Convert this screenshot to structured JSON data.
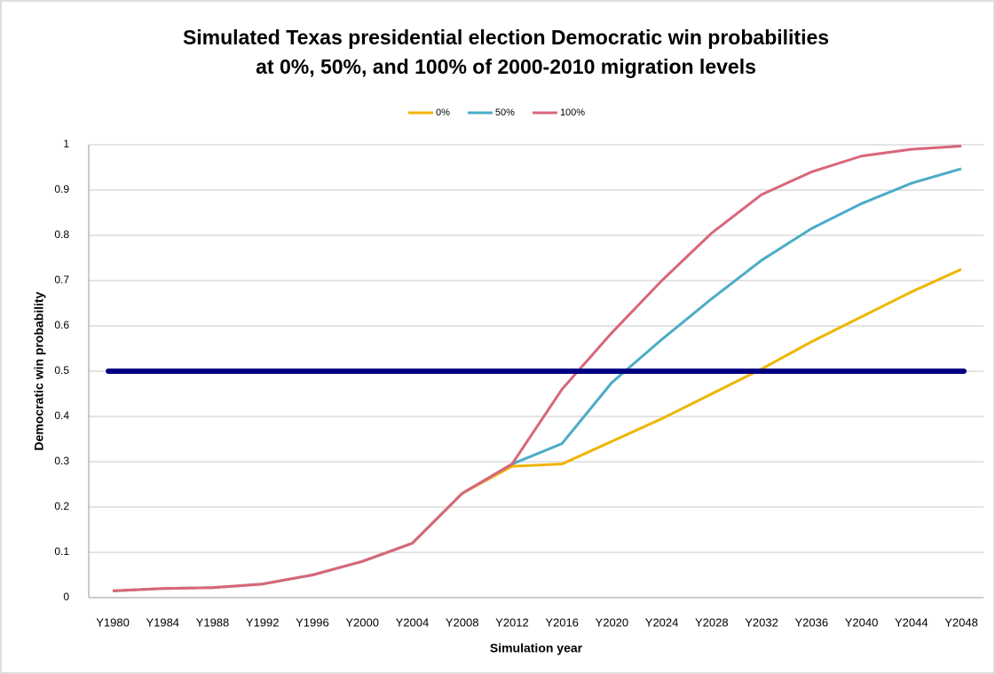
{
  "chart_data": {
    "type": "line",
    "title": [
      "Simulated Texas presidential election Democratic win probabilities",
      "at 0%, 50%, and 100% of 2000-2010 migration levels"
    ],
    "x_label": "Simulation year",
    "y_label": "Democratic win probability",
    "categories": [
      "Y1980",
      "Y1984",
      "Y1988",
      "Y1992",
      "Y1996",
      "Y2000",
      "Y2004",
      "Y2008",
      "Y2012",
      "Y2016",
      "Y2020",
      "Y2024",
      "Y2028",
      "Y2032",
      "Y2036",
      "Y2040",
      "Y2044",
      "Y2048"
    ],
    "series": [
      {
        "name": "0%",
        "color": "#f0b400",
        "values": [
          0.015,
          0.02,
          0.022,
          0.03,
          0.05,
          0.08,
          0.12,
          0.23,
          0.29,
          0.295,
          0.345,
          0.395,
          0.45,
          0.505,
          0.565,
          0.62,
          0.675,
          0.725
        ]
      },
      {
        "name": "50%",
        "color": "#4bacc6",
        "values": [
          0.015,
          0.02,
          0.022,
          0.03,
          0.05,
          0.08,
          0.12,
          0.23,
          0.295,
          0.34,
          0.475,
          0.57,
          0.66,
          0.745,
          0.815,
          0.87,
          0.915,
          0.947
        ]
      },
      {
        "name": "100%",
        "color": "#d9667a",
        "values": [
          0.015,
          0.02,
          0.022,
          0.03,
          0.05,
          0.08,
          0.12,
          0.23,
          0.295,
          0.46,
          0.585,
          0.7,
          0.805,
          0.89,
          0.94,
          0.975,
          0.99,
          0.997
        ]
      }
    ],
    "reference_line": {
      "value": 0.5,
      "color": "#000080"
    },
    "ylim": [
      0,
      1
    ],
    "yticks": [
      0,
      0.1,
      0.2,
      0.3,
      0.4,
      0.5,
      0.6,
      0.7,
      0.8,
      0.9,
      1
    ],
    "grid": true,
    "legend": "top"
  }
}
